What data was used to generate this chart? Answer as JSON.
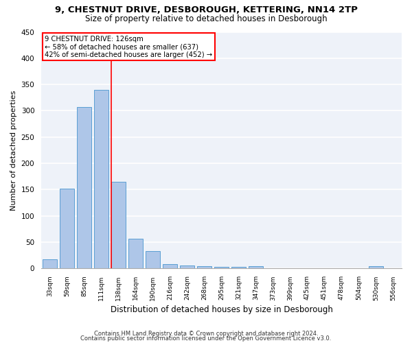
{
  "title1": "9, CHESTNUT DRIVE, DESBOROUGH, KETTERING, NN14 2TP",
  "title2": "Size of property relative to detached houses in Desborough",
  "xlabel": "Distribution of detached houses by size in Desborough",
  "ylabel": "Number of detached properties",
  "categories": [
    "33sqm",
    "59sqm",
    "85sqm",
    "111sqm",
    "138sqm",
    "164sqm",
    "190sqm",
    "216sqm",
    "242sqm",
    "268sqm",
    "295sqm",
    "321sqm",
    "347sqm",
    "373sqm",
    "399sqm",
    "425sqm",
    "451sqm",
    "478sqm",
    "504sqm",
    "530sqm",
    "556sqm"
  ],
  "values": [
    17,
    152,
    307,
    340,
    165,
    57,
    33,
    9,
    6,
    4,
    3,
    3,
    5,
    0,
    0,
    0,
    0,
    0,
    0,
    5,
    0
  ],
  "bar_color": "#aec6e8",
  "bar_edge_color": "#5a9fd4",
  "annotation_line0": "9 CHESTNUT DRIVE: 126sqm",
  "annotation_line1": "← 58% of detached houses are smaller (637)",
  "annotation_line2": "42% of semi-detached houses are larger (452) →",
  "annotation_box_color": "white",
  "annotation_box_edge": "red",
  "vline_color": "red",
  "vline_x": 3.56,
  "ylim": [
    0,
    450
  ],
  "yticks": [
    0,
    50,
    100,
    150,
    200,
    250,
    300,
    350,
    400,
    450
  ],
  "background_color": "#eef2f9",
  "grid_color": "white",
  "footer1": "Contains HM Land Registry data © Crown copyright and database right 2024.",
  "footer2": "Contains public sector information licensed under the Open Government Licence v3.0.",
  "title_fontsize": 9.5,
  "subtitle_fontsize": 8.5,
  "bar_width": 0.85
}
